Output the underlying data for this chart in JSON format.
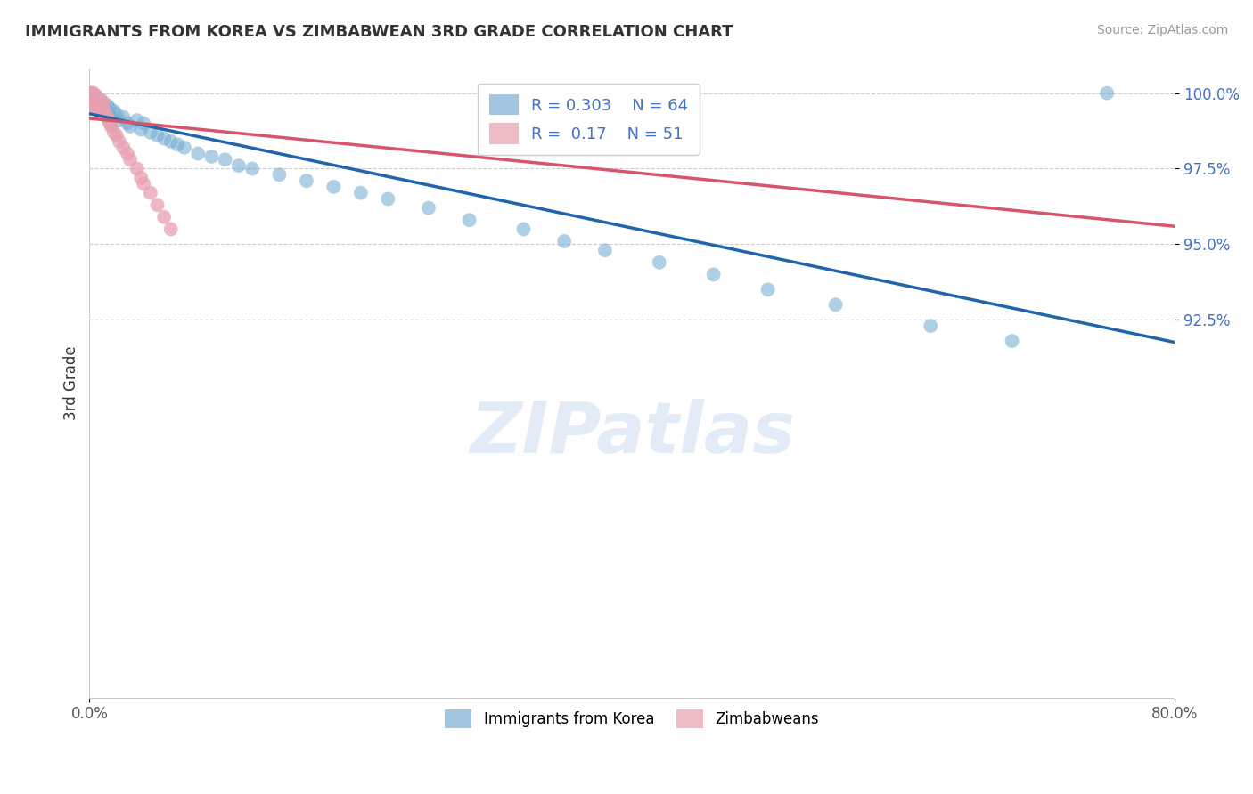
{
  "title": "IMMIGRANTS FROM KOREA VS ZIMBABWEAN 3RD GRADE CORRELATION CHART",
  "source": "Source: ZipAtlas.com",
  "ylabel": "3rd Grade",
  "x_min": 0.0,
  "x_max": 0.8,
  "y_min": 0.8,
  "y_max": 1.008,
  "korea_R": 0.303,
  "korea_N": 64,
  "zimb_R": 0.17,
  "zimb_N": 51,
  "korea_color": "#7bafd4",
  "zimb_color": "#e8a0b0",
  "korea_line_color": "#2166ac",
  "zimb_line_color": "#d6556b",
  "legend_korea_label": "Immigrants from Korea",
  "legend_zimb_label": "Zimbabweans",
  "korea_x": [
    0.001,
    0.001,
    0.002,
    0.002,
    0.002,
    0.003,
    0.003,
    0.003,
    0.004,
    0.004,
    0.004,
    0.005,
    0.005,
    0.006,
    0.006,
    0.007,
    0.007,
    0.008,
    0.008,
    0.009,
    0.01,
    0.011,
    0.012,
    0.013,
    0.014,
    0.015,
    0.016,
    0.018,
    0.02,
    0.022,
    0.025,
    0.028,
    0.03,
    0.035,
    0.038,
    0.04,
    0.045,
    0.05,
    0.055,
    0.06,
    0.065,
    0.07,
    0.08,
    0.09,
    0.1,
    0.11,
    0.12,
    0.14,
    0.16,
    0.18,
    0.2,
    0.22,
    0.25,
    0.28,
    0.32,
    0.35,
    0.38,
    0.42,
    0.46,
    0.5,
    0.55,
    0.62,
    0.68,
    0.75
  ],
  "korea_y": [
    0.999,
    0.998,
    0.999,
    0.998,
    0.997,
    0.999,
    0.998,
    0.997,
    0.998,
    0.997,
    0.996,
    0.999,
    0.997,
    0.998,
    0.996,
    0.997,
    0.995,
    0.998,
    0.996,
    0.997,
    0.996,
    0.995,
    0.994,
    0.996,
    0.993,
    0.995,
    0.992,
    0.994,
    0.993,
    0.991,
    0.992,
    0.99,
    0.989,
    0.991,
    0.988,
    0.99,
    0.987,
    0.986,
    0.985,
    0.984,
    0.983,
    0.982,
    0.98,
    0.979,
    0.978,
    0.976,
    0.975,
    0.973,
    0.971,
    0.969,
    0.967,
    0.965,
    0.962,
    0.958,
    0.955,
    0.951,
    0.948,
    0.944,
    0.94,
    0.935,
    0.93,
    0.923,
    0.918,
    1.0
  ],
  "zimb_x": [
    0.001,
    0.001,
    0.001,
    0.001,
    0.001,
    0.002,
    0.002,
    0.002,
    0.002,
    0.002,
    0.002,
    0.003,
    0.003,
    0.003,
    0.003,
    0.003,
    0.004,
    0.004,
    0.004,
    0.005,
    0.005,
    0.005,
    0.006,
    0.006,
    0.007,
    0.007,
    0.008,
    0.008,
    0.009,
    0.01,
    0.01,
    0.011,
    0.012,
    0.013,
    0.014,
    0.015,
    0.016,
    0.018,
    0.02,
    0.022,
    0.025,
    0.028,
    0.03,
    0.035,
    0.038,
    0.04,
    0.045,
    0.05,
    0.055,
    0.06,
    0.38
  ],
  "zimb_y": [
    1.0,
    0.999,
    0.999,
    0.998,
    0.998,
    1.0,
    0.999,
    0.998,
    0.997,
    0.997,
    0.996,
    1.0,
    0.999,
    0.998,
    0.997,
    0.996,
    0.999,
    0.998,
    0.996,
    0.999,
    0.997,
    0.995,
    0.998,
    0.996,
    0.998,
    0.996,
    0.997,
    0.995,
    0.996,
    0.997,
    0.995,
    0.994,
    0.993,
    0.992,
    0.991,
    0.99,
    0.989,
    0.987,
    0.986,
    0.984,
    0.982,
    0.98,
    0.978,
    0.975,
    0.972,
    0.97,
    0.967,
    0.963,
    0.959,
    0.955,
    0.997
  ]
}
